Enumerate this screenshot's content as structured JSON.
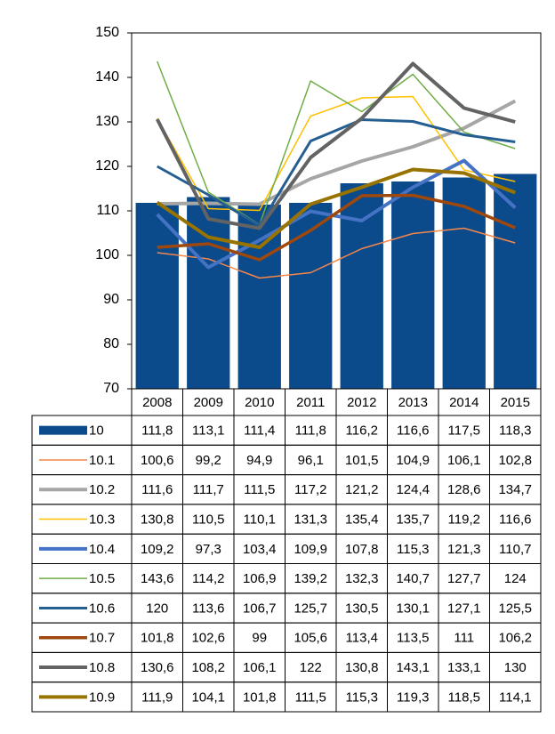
{
  "chart_data": {
    "type": "bar",
    "categories": [
      "2008",
      "2009",
      "2010",
      "2011",
      "2012",
      "2013",
      "2014",
      "2015"
    ],
    "ylim": [
      70,
      150
    ],
    "yticks": [
      70,
      80,
      90,
      100,
      110,
      120,
      130,
      140,
      150
    ],
    "series": [
      {
        "name": "10",
        "type": "bar",
        "color": "#0b4a8b",
        "values": [
          111.8,
          113.1,
          111.4,
          111.8,
          116.2,
          116.6,
          117.5,
          118.3
        ],
        "value_labels": [
          "111,8",
          "113,1",
          "111,4",
          "111,8",
          "116,2",
          "116,6",
          "117,5",
          "118,3"
        ]
      },
      {
        "name": "10.1",
        "type": "line",
        "color": "#f4874b",
        "values": [
          100.6,
          99.2,
          94.9,
          96.1,
          101.5,
          104.9,
          106.1,
          102.8
        ],
        "value_labels": [
          "100,6",
          "99,2",
          "94,9",
          "96,1",
          "101,5",
          "104,9",
          "106,1",
          "102,8"
        ]
      },
      {
        "name": "10.2",
        "type": "line",
        "color": "#a6a6a6",
        "values": [
          111.6,
          111.7,
          111.5,
          117.2,
          121.2,
          124.4,
          128.6,
          134.7
        ],
        "value_labels": [
          "111,6",
          "111,7",
          "111,5",
          "117,2",
          "121,2",
          "124,4",
          "128,6",
          "134,7"
        ]
      },
      {
        "name": "10.3",
        "type": "line",
        "color": "#ffc000",
        "values": [
          130.8,
          110.5,
          110.1,
          131.3,
          135.4,
          135.7,
          119.2,
          116.6
        ],
        "value_labels": [
          "130,8",
          "110,5",
          "110,1",
          "131,3",
          "135,4",
          "135,7",
          "119,2",
          "116,6"
        ]
      },
      {
        "name": "10.4",
        "type": "line",
        "color": "#4472c4",
        "values": [
          109.2,
          97.3,
          103.4,
          109.9,
          107.8,
          115.3,
          121.3,
          110.7
        ],
        "value_labels": [
          "109,2",
          "97,3",
          "103,4",
          "109,9",
          "107,8",
          "115,3",
          "121,3",
          "110,7"
        ]
      },
      {
        "name": "10.5",
        "type": "line",
        "color": "#70ad47",
        "values": [
          143.6,
          114.2,
          106.9,
          139.2,
          132.3,
          140.7,
          127.7,
          124
        ],
        "value_labels": [
          "143,6",
          "114,2",
          "106,9",
          "139,2",
          "132,3",
          "140,7",
          "127,7",
          "124"
        ]
      },
      {
        "name": "10.6",
        "type": "line",
        "color": "#255e91",
        "values": [
          120,
          113.6,
          106.7,
          125.7,
          130.5,
          130.1,
          127.1,
          125.5
        ],
        "value_labels": [
          "120",
          "113,6",
          "106,7",
          "125,7",
          "130,5",
          "130,1",
          "127,1",
          "125,5"
        ]
      },
      {
        "name": "10.7",
        "type": "line",
        "color": "#9e480e",
        "values": [
          101.8,
          102.6,
          99,
          105.6,
          113.4,
          113.5,
          111,
          106.2
        ],
        "value_labels": [
          "101,8",
          "102,6",
          "99",
          "105,6",
          "113,4",
          "113,5",
          "111",
          "106,2"
        ]
      },
      {
        "name": "10.8",
        "type": "line",
        "color": "#636363",
        "values": [
          130.6,
          108.2,
          106.1,
          122,
          130.8,
          143.1,
          133.1,
          130
        ],
        "value_labels": [
          "130,6",
          "108,2",
          "106,1",
          "122",
          "130,8",
          "143,1",
          "133,1",
          "130"
        ]
      },
      {
        "name": "10.9",
        "type": "line",
        "color": "#997300",
        "values": [
          111.9,
          104.1,
          101.8,
          111.5,
          115.3,
          119.3,
          118.5,
          114.1
        ],
        "value_labels": [
          "111,9",
          "104,1",
          "101,8",
          "111,5",
          "115,3",
          "119,3",
          "118,5",
          "114,1"
        ]
      }
    ]
  }
}
